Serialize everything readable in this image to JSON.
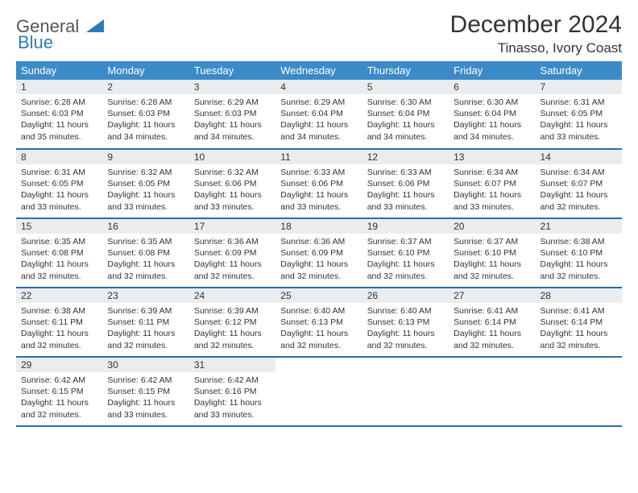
{
  "logo": {
    "word1": "General",
    "word2": "Blue"
  },
  "title": "December 2024",
  "location": "Tinasso, Ivory Coast",
  "colors": {
    "header_bg": "#3b8bc9",
    "header_text": "#ffffff",
    "row_border": "#2b6ea3",
    "daynum_bg": "#e9edf0",
    "text": "#333333",
    "logo_gray": "#555555",
    "logo_blue": "#2b7bbf"
  },
  "weekdays": [
    "Sunday",
    "Monday",
    "Tuesday",
    "Wednesday",
    "Thursday",
    "Friday",
    "Saturday"
  ],
  "weeks": [
    [
      {
        "n": "1",
        "sr": "6:28 AM",
        "ss": "6:03 PM",
        "dh": "11",
        "dm": "35"
      },
      {
        "n": "2",
        "sr": "6:28 AM",
        "ss": "6:03 PM",
        "dh": "11",
        "dm": "34"
      },
      {
        "n": "3",
        "sr": "6:29 AM",
        "ss": "6:03 PM",
        "dh": "11",
        "dm": "34"
      },
      {
        "n": "4",
        "sr": "6:29 AM",
        "ss": "6:04 PM",
        "dh": "11",
        "dm": "34"
      },
      {
        "n": "5",
        "sr": "6:30 AM",
        "ss": "6:04 PM",
        "dh": "11",
        "dm": "34"
      },
      {
        "n": "6",
        "sr": "6:30 AM",
        "ss": "6:04 PM",
        "dh": "11",
        "dm": "34"
      },
      {
        "n": "7",
        "sr": "6:31 AM",
        "ss": "6:05 PM",
        "dh": "11",
        "dm": "33"
      }
    ],
    [
      {
        "n": "8",
        "sr": "6:31 AM",
        "ss": "6:05 PM",
        "dh": "11",
        "dm": "33"
      },
      {
        "n": "9",
        "sr": "6:32 AM",
        "ss": "6:05 PM",
        "dh": "11",
        "dm": "33"
      },
      {
        "n": "10",
        "sr": "6:32 AM",
        "ss": "6:06 PM",
        "dh": "11",
        "dm": "33"
      },
      {
        "n": "11",
        "sr": "6:33 AM",
        "ss": "6:06 PM",
        "dh": "11",
        "dm": "33"
      },
      {
        "n": "12",
        "sr": "6:33 AM",
        "ss": "6:06 PM",
        "dh": "11",
        "dm": "33"
      },
      {
        "n": "13",
        "sr": "6:34 AM",
        "ss": "6:07 PM",
        "dh": "11",
        "dm": "33"
      },
      {
        "n": "14",
        "sr": "6:34 AM",
        "ss": "6:07 PM",
        "dh": "11",
        "dm": "32"
      }
    ],
    [
      {
        "n": "15",
        "sr": "6:35 AM",
        "ss": "6:08 PM",
        "dh": "11",
        "dm": "32"
      },
      {
        "n": "16",
        "sr": "6:35 AM",
        "ss": "6:08 PM",
        "dh": "11",
        "dm": "32"
      },
      {
        "n": "17",
        "sr": "6:36 AM",
        "ss": "6:09 PM",
        "dh": "11",
        "dm": "32"
      },
      {
        "n": "18",
        "sr": "6:36 AM",
        "ss": "6:09 PM",
        "dh": "11",
        "dm": "32"
      },
      {
        "n": "19",
        "sr": "6:37 AM",
        "ss": "6:10 PM",
        "dh": "11",
        "dm": "32"
      },
      {
        "n": "20",
        "sr": "6:37 AM",
        "ss": "6:10 PM",
        "dh": "11",
        "dm": "32"
      },
      {
        "n": "21",
        "sr": "6:38 AM",
        "ss": "6:10 PM",
        "dh": "11",
        "dm": "32"
      }
    ],
    [
      {
        "n": "22",
        "sr": "6:38 AM",
        "ss": "6:11 PM",
        "dh": "11",
        "dm": "32"
      },
      {
        "n": "23",
        "sr": "6:39 AM",
        "ss": "6:11 PM",
        "dh": "11",
        "dm": "32"
      },
      {
        "n": "24",
        "sr": "6:39 AM",
        "ss": "6:12 PM",
        "dh": "11",
        "dm": "32"
      },
      {
        "n": "25",
        "sr": "6:40 AM",
        "ss": "6:13 PM",
        "dh": "11",
        "dm": "32"
      },
      {
        "n": "26",
        "sr": "6:40 AM",
        "ss": "6:13 PM",
        "dh": "11",
        "dm": "32"
      },
      {
        "n": "27",
        "sr": "6:41 AM",
        "ss": "6:14 PM",
        "dh": "11",
        "dm": "32"
      },
      {
        "n": "28",
        "sr": "6:41 AM",
        "ss": "6:14 PM",
        "dh": "11",
        "dm": "32"
      }
    ],
    [
      {
        "n": "29",
        "sr": "6:42 AM",
        "ss": "6:15 PM",
        "dh": "11",
        "dm": "32"
      },
      {
        "n": "30",
        "sr": "6:42 AM",
        "ss": "6:15 PM",
        "dh": "11",
        "dm": "33"
      },
      {
        "n": "31",
        "sr": "6:42 AM",
        "ss": "6:16 PM",
        "dh": "11",
        "dm": "33"
      },
      null,
      null,
      null,
      null
    ]
  ]
}
